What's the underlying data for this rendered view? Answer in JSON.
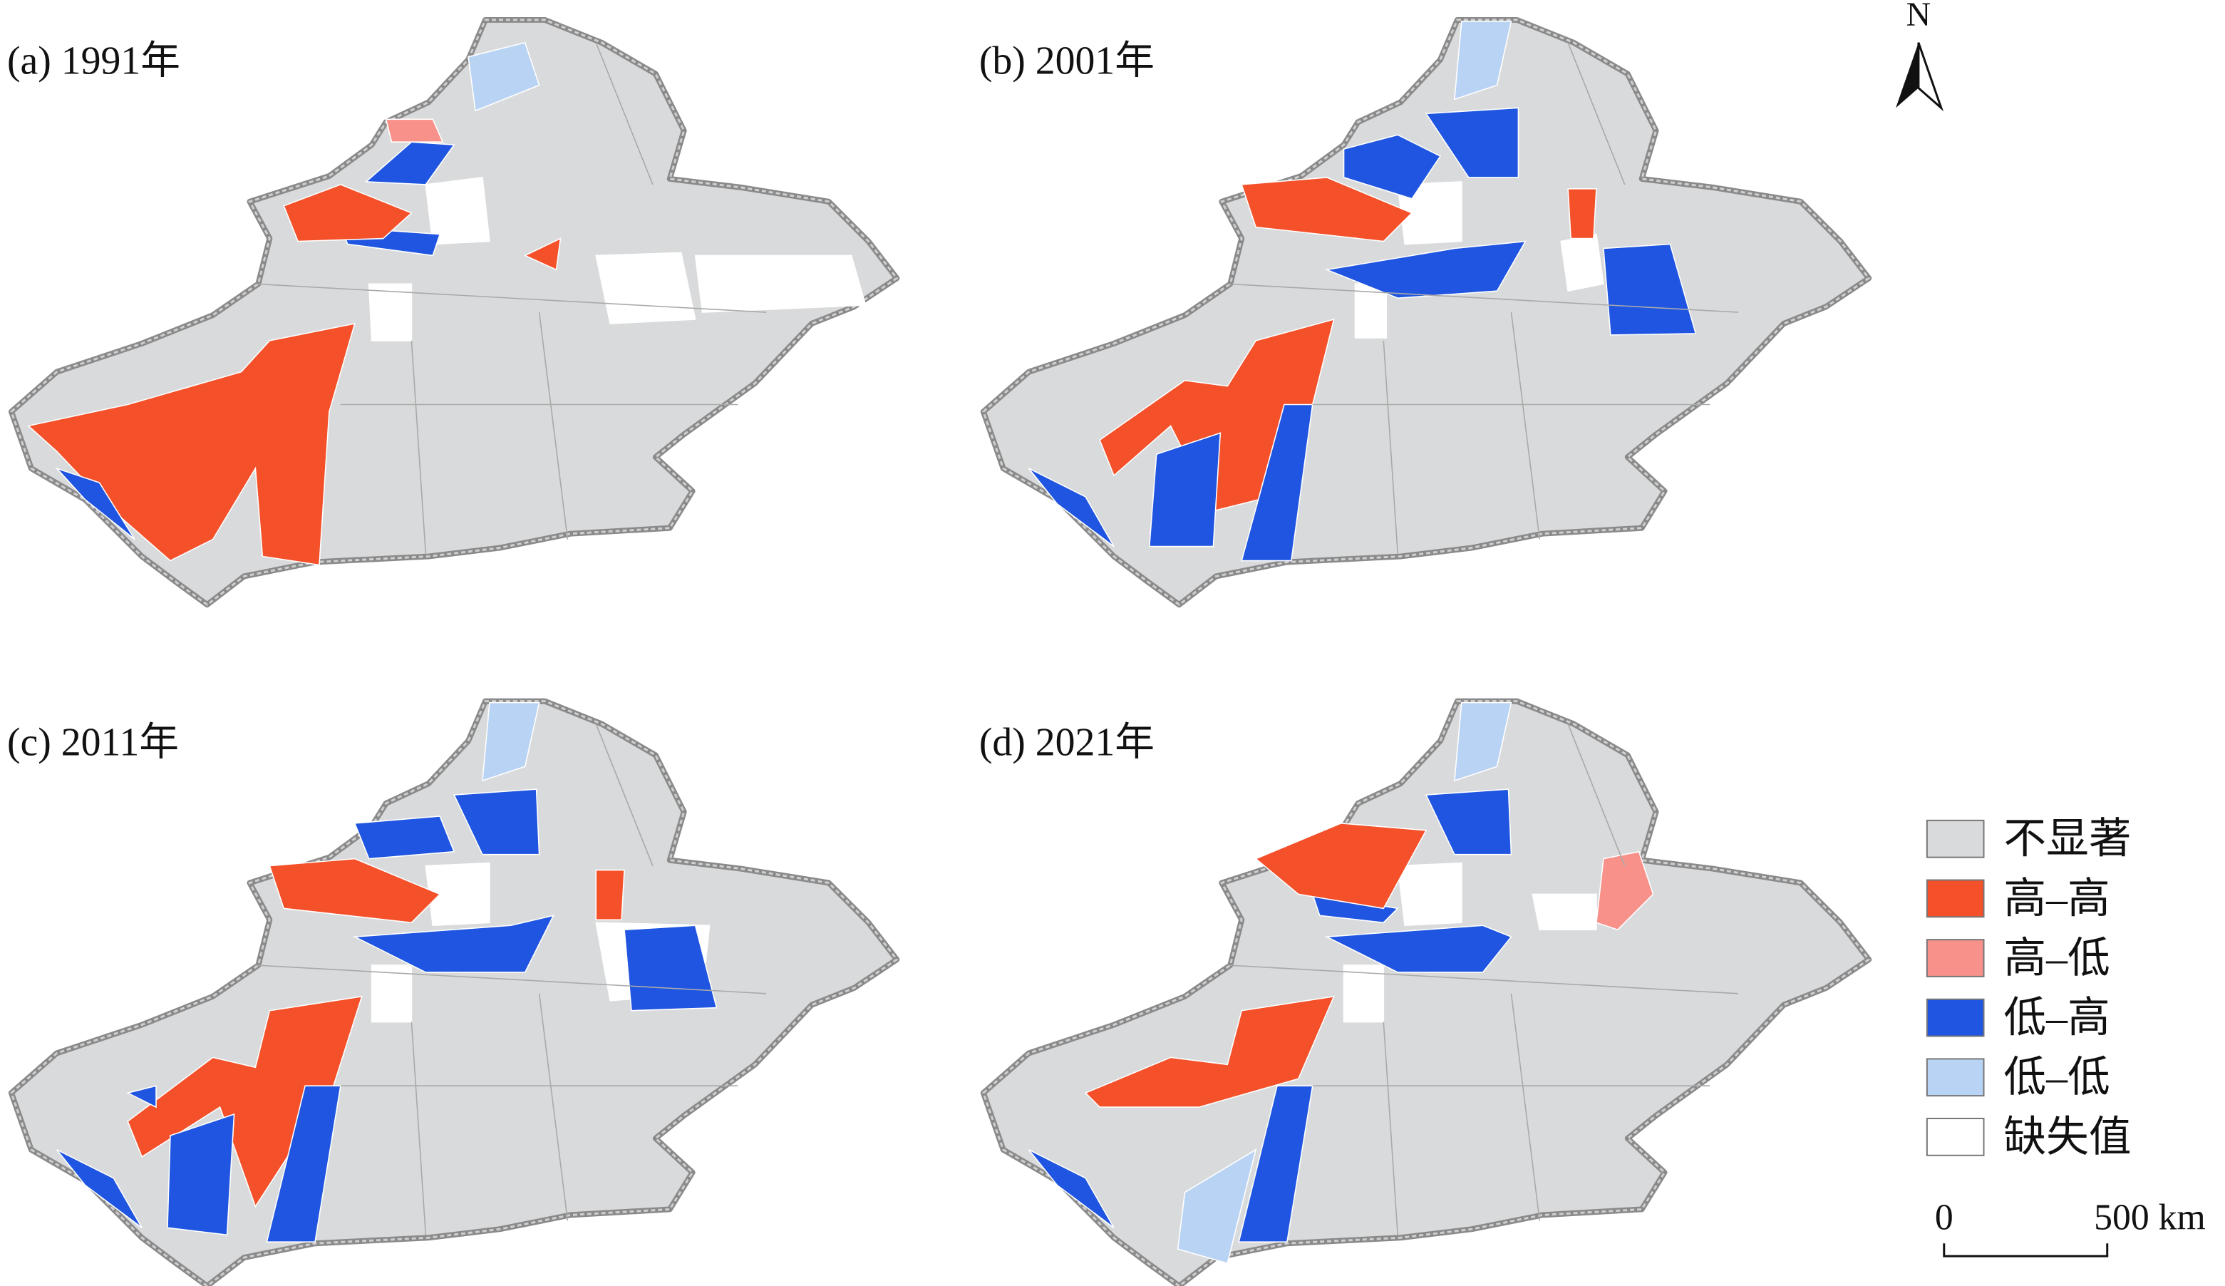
{
  "panels": [
    {
      "label": "(a) 1991年"
    },
    {
      "label": "(b) 2001年"
    },
    {
      "label": "(c) 2011年"
    },
    {
      "label": "(d) 2021年"
    }
  ],
  "legend": [
    {
      "label": "不显著",
      "color": "#d9dadb"
    },
    {
      "label": "高–高",
      "color": "#f4502a"
    },
    {
      "label": "高–低",
      "color": "#f7918a"
    },
    {
      "label": "低–高",
      "color": "#1f55e0"
    },
    {
      "label": "低–低",
      "color": "#b9d3f4"
    },
    {
      "label": "缺失值",
      "color": "#ffffff"
    }
  ],
  "north": "N",
  "scale_bar": {
    "start": "0",
    "end": "500 km"
  }
}
